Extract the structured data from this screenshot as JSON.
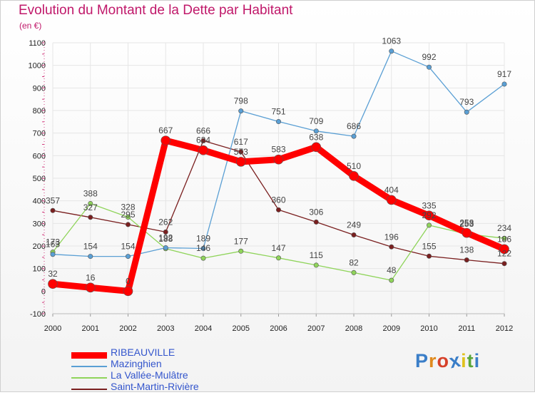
{
  "chart_data": {
    "type": "line",
    "title": "Evolution du Montant de la Dette par Habitant",
    "subtitle": "(en €)",
    "xlabel": "",
    "ylabel": "",
    "ylim": [
      -100,
      1100
    ],
    "yticks": [
      -100,
      0,
      100,
      200,
      300,
      400,
      500,
      600,
      700,
      800,
      900,
      1000,
      1100
    ],
    "x": [
      "2000",
      "2001",
      "2002",
      "2003",
      "2004",
      "2005",
      "2006",
      "2007",
      "2008",
      "2009",
      "2010",
      "2011",
      "2012"
    ],
    "grid": true,
    "legend_position": "bottom-left",
    "series": [
      {
        "name": "RIBEAUVILLE",
        "color": "#ff0000",
        "values": [
          32,
          16,
          0,
          667,
          624,
          573,
          583,
          638,
          510,
          404,
          335,
          258,
          186
        ]
      },
      {
        "name": "Mazinghien",
        "color": "#5a9fd4",
        "values": [
          163,
          154,
          154,
          192,
          189,
          798,
          751,
          709,
          686,
          1063,
          992,
          793,
          917
        ]
      },
      {
        "name": "La Vallée-Mulâtre",
        "color": "#8fd45a",
        "values": [
          173,
          388,
          328,
          188,
          146,
          177,
          147,
          115,
          82,
          48,
          292,
          253,
          234
        ]
      },
      {
        "name": "Saint-Martin-Rivière",
        "color": "#7a1f1f",
        "values": [
          357,
          327,
          295,
          262,
          666,
          617,
          360,
          306,
          249,
          196,
          155,
          138,
          122
        ]
      }
    ]
  },
  "logo": {
    "text": "Proxiti"
  }
}
